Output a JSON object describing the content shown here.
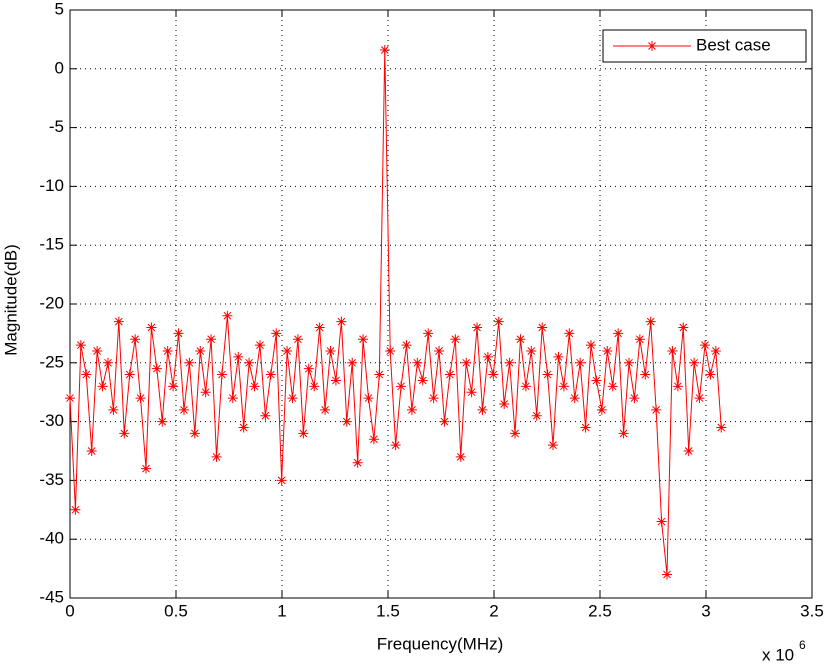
{
  "chart_data": {
    "type": "line",
    "xlabel": "Frequency(MHz)",
    "ylabel": "Magnitude(dB)",
    "x_multiplier": "x 10",
    "x_exponent": "6",
    "x": [
      0,
      0.0256,
      0.0512,
      0.0768,
      0.1024,
      0.128,
      0.1536,
      0.1792,
      0.2048,
      0.2304,
      0.256,
      0.2816,
      0.3072,
      0.3328,
      0.3584,
      0.384,
      0.4096,
      0.4352,
      0.4608,
      0.4864,
      0.512,
      0.5376,
      0.5632,
      0.5888,
      0.6144,
      0.64,
      0.6656,
      0.6912,
      0.7168,
      0.7424,
      0.768,
      0.7936,
      0.8192,
      0.8448,
      0.8704,
      0.896,
      0.9216,
      0.9472,
      0.9728,
      0.9984,
      1.024,
      1.0496,
      1.0752,
      1.1008,
      1.1264,
      1.152,
      1.1776,
      1.2032,
      1.2288,
      1.2544,
      1.28,
      1.3056,
      1.3312,
      1.3568,
      1.3824,
      1.408,
      1.4336,
      1.4592,
      1.4848,
      1.5104,
      1.536,
      1.5616,
      1.5872,
      1.6128,
      1.6384,
      1.664,
      1.6896,
      1.7152,
      1.7408,
      1.7664,
      1.792,
      1.8176,
      1.8432,
      1.8688,
      1.8944,
      1.92,
      1.9456,
      1.9712,
      1.9968,
      2.0224,
      2.048,
      2.0736,
      2.0992,
      2.1248,
      2.1504,
      2.176,
      2.2016,
      2.2272,
      2.2528,
      2.2784,
      2.304,
      2.3296,
      2.3552,
      2.3808,
      2.4064,
      2.432,
      2.4576,
      2.4832,
      2.5088,
      2.5344,
      2.56,
      2.5856,
      2.6112,
      2.6368,
      2.6624,
      2.688,
      2.7136,
      2.7392,
      2.7648,
      2.7904,
      2.816,
      2.8416,
      2.8672,
      2.8928,
      2.9184,
      2.944,
      2.9696,
      2.9952,
      3.0208,
      3.0464,
      3.072
    ],
    "series": [
      {
        "name": "Best case",
        "color": "#ff0000",
        "values": [
          -28,
          -37.5,
          -23.5,
          -26,
          -32.5,
          -24,
          -27,
          -25,
          -29,
          -21.5,
          -31,
          -26,
          -23,
          -28,
          -34,
          -22,
          -25.5,
          -30,
          -24,
          -27,
          -22.5,
          -29,
          -25,
          -31,
          -24,
          -27.5,
          -23,
          -33,
          -26,
          -21,
          -28,
          -24.5,
          -30.5,
          -25,
          -27,
          -23.5,
          -29.5,
          -26,
          -22.5,
          -35,
          -24,
          -28,
          -23,
          -31,
          -25.5,
          -27,
          -22,
          -29,
          -24,
          -26.5,
          -21.5,
          -30,
          -25,
          -33.5,
          -23,
          -28,
          -31.5,
          -26,
          1.6,
          -24,
          -32,
          -27,
          -23.5,
          -29,
          -25,
          -26.5,
          -22.5,
          -28,
          -24,
          -30,
          -26,
          -23,
          -33,
          -25,
          -27.5,
          -22,
          -29,
          -24.5,
          -26,
          -21.5,
          -28.5,
          -25,
          -31,
          -23,
          -27,
          -24,
          -29.5,
          -22,
          -26,
          -32,
          -24.5,
          -27,
          -22.5,
          -28,
          -25,
          -30.5,
          -23.5,
          -26.5,
          -29,
          -24,
          -27,
          -22.5,
          -31,
          -25,
          -28,
          -23,
          -26,
          -21.5,
          -29,
          -38.5,
          -43,
          -24,
          -27,
          -22,
          -32.5,
          -25,
          -28,
          -23.5,
          -26,
          -24,
          -30.5
        ]
      }
    ],
    "xlim": [
      0,
      3.5
    ],
    "xticks": [
      0,
      0.5,
      1,
      1.5,
      2,
      2.5,
      3,
      3.5
    ],
    "ylim": [
      -45,
      5
    ],
    "yticks": [
      -45,
      -40,
      -35,
      -30,
      -25,
      -20,
      -15,
      -10,
      -5,
      0,
      5
    ],
    "grid": true,
    "legend": "upper right"
  }
}
